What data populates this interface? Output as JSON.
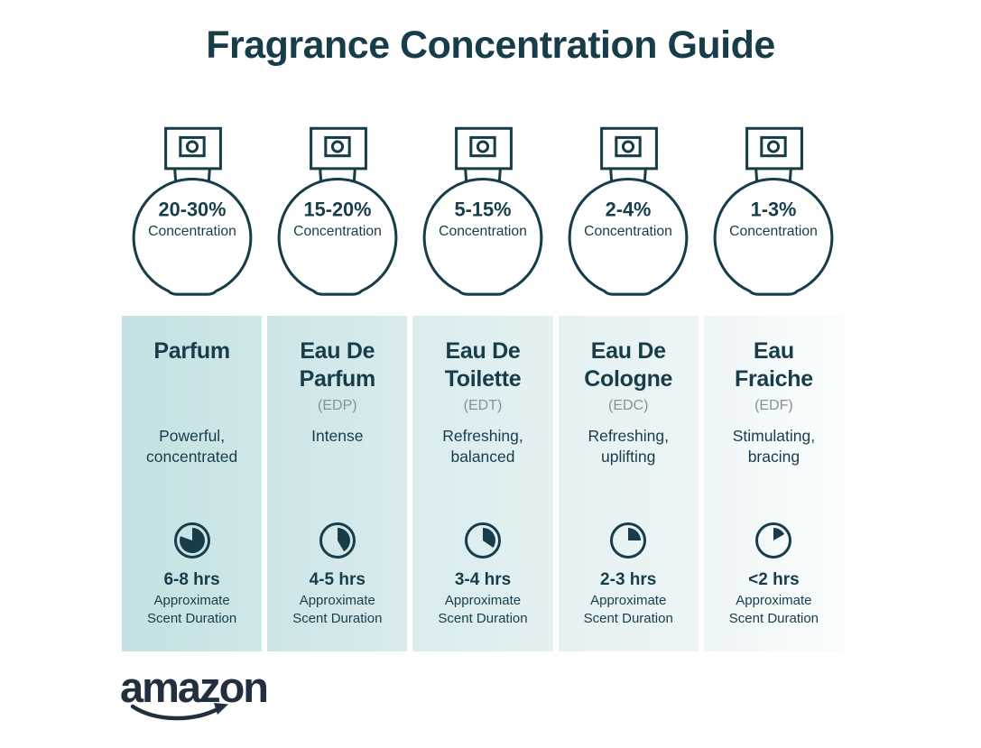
{
  "title": "Fragrance Concentration Guide",
  "colors": {
    "dark_teal": "#173d4a",
    "liquid_teal": "#b9dce0",
    "abbr_gray": "#7f949a",
    "brand_navy": "#232f3e"
  },
  "bottles": [
    {
      "percent": "20-30%",
      "label": "Concentration",
      "fill_level": 41
    },
    {
      "percent": "15-20%",
      "label": "Concentration",
      "fill_level": 31
    },
    {
      "percent": "5-15%",
      "label": "Concentration",
      "fill_level": 22
    },
    {
      "percent": "2-4%",
      "label": "Concentration",
      "fill_level": 14
    },
    {
      "percent": "1-3%",
      "label": "Concentration",
      "fill_level": 6
    }
  ],
  "cards": [
    {
      "name_line1": "Parfum",
      "name_line2": "",
      "abbr": "",
      "desc_line1": "Powerful,",
      "desc_line2": "concentrated",
      "duration": "6-8 hrs",
      "clock_degrees": 290,
      "bg_from": "#c3e1e3",
      "bg_to": "#cfe7e8"
    },
    {
      "name_line1": "Eau De",
      "name_line2": "Parfum",
      "abbr": "(EDP)",
      "desc_line1": "Intense",
      "desc_line2": "",
      "duration": "4-5 hrs",
      "clock_degrees": 150,
      "bg_from": "#cde5e7",
      "bg_to": "#d9ebed"
    },
    {
      "name_line1": "Eau De",
      "name_line2": "Toilette",
      "abbr": "(EDT)",
      "desc_line1": "Refreshing,",
      "desc_line2": "balanced",
      "duration": "3-4 hrs",
      "clock_degrees": 125,
      "bg_from": "#d9ecee",
      "bg_to": "#e4f1f2"
    },
    {
      "name_line1": "Eau De",
      "name_line2": "Cologne",
      "abbr": "(EDC)",
      "desc_line1": "Refreshing,",
      "desc_line2": "uplifting",
      "duration": "2-3 hrs",
      "clock_degrees": 90,
      "bg_from": "#e4f1f2",
      "bg_to": "#eef5f6"
    },
    {
      "name_line1": "Eau",
      "name_line2": "Fraiche",
      "abbr": "(EDF)",
      "desc_line1": "Stimulating,",
      "desc_line2": "bracing",
      "duration": "<2 hrs",
      "clock_degrees": 60,
      "bg_from": "#eef5f6",
      "bg_to": "#fbfdfd"
    }
  ],
  "labels": {
    "approximate": "Approximate",
    "scent_duration": "Scent Duration"
  },
  "brand": {
    "name": "amazon"
  }
}
